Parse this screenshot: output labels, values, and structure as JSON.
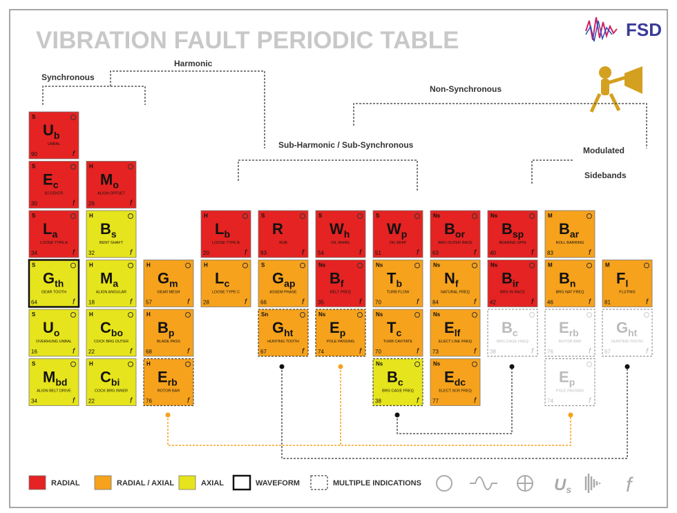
{
  "title": "VIBRATION FAULT PERIODIC TABLE",
  "logo": "FSD",
  "groups": {
    "synchronous": "Synchronous",
    "harmonic": "Harmonic",
    "non_synchronous": "Non-Synchronous",
    "sub_harmonic": "Sub-Harmonic / Sub-Synchronous",
    "modulated": "Modulated",
    "sidebands": "Sidebands"
  },
  "freq_symbol": "f",
  "cells": [
    {
      "tag": "S",
      "symbol": "U",
      "sub": "b",
      "number": 90,
      "label": "UNBAL",
      "fill": "#e42322",
      "style": "solid"
    },
    {
      "tag": "S",
      "symbol": "E",
      "sub": "c",
      "number": 30,
      "label": "ECCENTR",
      "fill": "#e42322",
      "style": "solid"
    },
    {
      "tag": "S",
      "symbol": "L",
      "sub": "a",
      "number": 34,
      "label": "LOOSE TYPE A",
      "fill": "#e42322",
      "style": "solid"
    },
    {
      "tag": "S",
      "symbol": "G",
      "sub": "th",
      "number": 64,
      "label": "GEAR TOOTH",
      "fill": "#e6e41c",
      "style": "waveform"
    },
    {
      "tag": "S",
      "symbol": "U",
      "sub": "o",
      "number": 16,
      "label": "OVERHUNG UNBAL",
      "fill": "#e6e41c",
      "style": "solid"
    },
    {
      "tag": "S",
      "symbol": "M",
      "sub": "bd",
      "number": 34,
      "label": "ALIGN BELT DRIVE",
      "fill": "#e6e41c",
      "style": "solid"
    },
    {
      "tag": "H",
      "symbol": "M",
      "sub": "o",
      "number": 26,
      "label": "ALIGN OFFSET",
      "fill": "#e42322",
      "style": "solid"
    },
    {
      "tag": "H",
      "symbol": "B",
      "sub": "s",
      "number": 32,
      "label": "BENT SHAFT",
      "fill": "#e6e41c",
      "style": "solid"
    },
    {
      "tag": "H",
      "symbol": "M",
      "sub": "a",
      "number": 18,
      "label": "ALIGN ANGULAR",
      "fill": "#e6e41c",
      "style": "solid"
    },
    {
      "tag": "H",
      "symbol": "C",
      "sub": "bo",
      "number": 22,
      "label": "COCK BRG OUTER",
      "fill": "#e6e41c",
      "style": "solid"
    },
    {
      "tag": "H",
      "symbol": "C",
      "sub": "bi",
      "number": 22,
      "label": "COCK BRG INNER",
      "fill": "#e6e41c",
      "style": "solid"
    },
    {
      "tag": "H",
      "symbol": "G",
      "sub": "m",
      "number": 57,
      "label": "GEAR MESH",
      "fill": "#f6a21c",
      "style": "solid"
    },
    {
      "tag": "H",
      "symbol": "B",
      "sub": "p",
      "number": 68,
      "label": "BLADE PASS",
      "fill": "#f6a21c",
      "style": "solid"
    },
    {
      "tag": "H",
      "symbol": "E",
      "sub": "rb",
      "number": 76,
      "label": "ROTOR BAR",
      "fill": "#f6a21c",
      "style": "multiple"
    },
    {
      "tag": "H",
      "symbol": "L",
      "sub": "b",
      "number": 20,
      "label": "LOOSE TYPE B",
      "fill": "#e42322",
      "style": "solid"
    },
    {
      "tag": "H",
      "symbol": "L",
      "sub": "c",
      "number": 28,
      "label": "LOOSE TYPE C",
      "fill": "#f6a21c",
      "style": "solid"
    },
    {
      "tag": "S",
      "symbol": "R",
      "number": 93,
      "label": "RUB",
      "fill": "#e42322",
      "style": "solid"
    },
    {
      "tag": "S",
      "symbol": "G",
      "sub": "ap",
      "number": 66,
      "label": "ASSEM PHASE",
      "fill": "#f6a21c",
      "style": "solid"
    },
    {
      "tag": "Sn",
      "symbol": "G",
      "sub": "ht",
      "number": 67,
      "label": "HUNTING TOOTH",
      "fill": "#f6a21c",
      "style": "multiple"
    },
    {
      "tag": "S",
      "symbol": "W",
      "sub": "h",
      "number": 54,
      "label": "OIL WHIRL",
      "fill": "#e42322",
      "style": "solid"
    },
    {
      "tag": "Ns",
      "symbol": "B",
      "sub": "f",
      "number": 35,
      "label": "BELT FREQ",
      "fill": "#e42322",
      "style": "solid"
    },
    {
      "tag": "Ns",
      "symbol": "E",
      "sub": "p",
      "number": 74,
      "label": "POLE PASSING",
      "fill": "#f6a21c",
      "style": "multiple"
    },
    {
      "tag": "S",
      "symbol": "W",
      "sub": "p",
      "number": 51,
      "label": "OIL WHIP",
      "fill": "#e42322",
      "style": "solid"
    },
    {
      "tag": "Ns",
      "symbol": "T",
      "sub": "b",
      "number": 70,
      "label": "TURB FLOW",
      "fill": "#f6a21c",
      "style": "solid"
    },
    {
      "tag": "Ns",
      "symbol": "T",
      "sub": "c",
      "number": 70,
      "label": "TURB CAVITATE",
      "fill": "#f6a21c",
      "style": "solid"
    },
    {
      "tag": "Ns",
      "symbol": "B",
      "sub": "c",
      "number": 38,
      "label": "BRG CAGE FREQ",
      "fill": "#e6e41c",
      "style": "multiple"
    },
    {
      "tag": "Ns",
      "symbol": "B",
      "sub": "or",
      "number": 63,
      "label": "BRG OUTER RACE",
      "fill": "#e42322",
      "style": "solid"
    },
    {
      "tag": "Ns",
      "symbol": "N",
      "sub": "f",
      "number": 84,
      "label": "NATURAL FREQ",
      "fill": "#f6a21c",
      "style": "solid"
    },
    {
      "tag": "Ns",
      "symbol": "E",
      "sub": "lf",
      "number": 73,
      "label": "ELECT LINE FREQ",
      "fill": "#f6a21c",
      "style": "solid"
    },
    {
      "tag": "Ns",
      "symbol": "E",
      "sub": "dc",
      "number": 77,
      "label": "ELECT SCR FREQ",
      "fill": "#f6a21c",
      "style": "solid"
    },
    {
      "tag": "Ns",
      "symbol": "B",
      "sub": "sp",
      "number": 40,
      "label": "BEARING SPIN",
      "fill": "#e42322",
      "style": "solid"
    },
    {
      "tag": "Ns",
      "symbol": "B",
      "sub": "ir",
      "number": 42,
      "label": "BRG IN RACE",
      "fill": "#e42322",
      "style": "solid"
    },
    {
      "symbol": "B",
      "sub": "c",
      "number": 38,
      "label": "BRG CAGE FREQ",
      "fill": "#ffffff",
      "style": "ghost"
    },
    {
      "tag": "M",
      "symbol": "B",
      "sub": "ar",
      "number": 83,
      "label": "ROLL BARRING",
      "fill": "#f6a21c",
      "style": "solid"
    },
    {
      "tag": "M",
      "symbol": "B",
      "sub": "n",
      "number": 46,
      "label": "BRG NAT FREQ",
      "fill": "#f6a21c",
      "style": "solid"
    },
    {
      "symbol": "E",
      "sub": "rb",
      "number": 76,
      "label": "ROTOR BAR",
      "fill": "#ffffff",
      "style": "ghost"
    },
    {
      "symbol": "E",
      "sub": "p",
      "number": 74,
      "label": "POLE PASSING",
      "fill": "#ffffff",
      "style": "ghost"
    },
    {
      "tag": "M",
      "symbol": "F",
      "sub": "l",
      "number": 81,
      "label": "FLUTING",
      "fill": "#f6a21c",
      "style": "solid"
    },
    {
      "symbol": "G",
      "sub": "ht",
      "number": 67,
      "label": "HUNTING TOOTH",
      "fill": "#ffffff",
      "style": "ghost"
    }
  ],
  "legend": [
    {
      "label": "RADIAL",
      "fill": "#e42322",
      "style": "solid"
    },
    {
      "label": "RADIAL / AXIAL",
      "fill": "#f6a21c",
      "style": "solid"
    },
    {
      "label": "AXIAL",
      "fill": "#e6e41c",
      "style": "solid"
    },
    {
      "label": "WAVEFORM",
      "fill": "#ffffff",
      "style": "waveform"
    },
    {
      "label": "MULTIPLE INDICATIONS",
      "fill": "#ffffff",
      "style": "multiple"
    }
  ],
  "legend_icons": {
    "us": "U",
    "us_sub": "s"
  }
}
